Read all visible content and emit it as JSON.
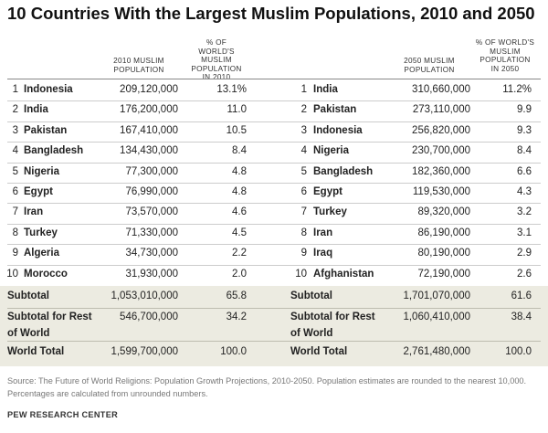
{
  "chart_data": {
    "type": "table",
    "title": "10 Countries With the Largest Muslim Populations, 2010 and 2050",
    "columns_2010": [
      "2010 MUSLIM POPULATION",
      "% OF WORLD'S MUSLIM POPULATION IN 2010"
    ],
    "columns_2050": [
      "2050 MUSLIM POPULATION",
      "% OF WORLD'S MUSLIM POPULATION IN 2050"
    ],
    "rows_2010": [
      {
        "rank": "1",
        "country": "Indonesia",
        "population": "209,120,000",
        "percent": "13.1%"
      },
      {
        "rank": "2",
        "country": "India",
        "population": "176,200,000",
        "percent": "11.0"
      },
      {
        "rank": "3",
        "country": "Pakistan",
        "population": "167,410,000",
        "percent": "10.5"
      },
      {
        "rank": "4",
        "country": "Bangladesh",
        "population": "134,430,000",
        "percent": "8.4"
      },
      {
        "rank": "5",
        "country": "Nigeria",
        "population": "77,300,000",
        "percent": "4.8"
      },
      {
        "rank": "6",
        "country": "Egypt",
        "population": "76,990,000",
        "percent": "4.8"
      },
      {
        "rank": "7",
        "country": "Iran",
        "population": "73,570,000",
        "percent": "4.6"
      },
      {
        "rank": "8",
        "country": "Turkey",
        "population": "71,330,000",
        "percent": "4.5"
      },
      {
        "rank": "9",
        "country": "Algeria",
        "population": "34,730,000",
        "percent": "2.2"
      },
      {
        "rank": "10",
        "country": "Morocco",
        "population": "31,930,000",
        "percent": "2.0"
      }
    ],
    "rows_2050": [
      {
        "rank": "1",
        "country": "India",
        "population": "310,660,000",
        "percent": "11.2%"
      },
      {
        "rank": "2",
        "country": "Pakistan",
        "population": "273,110,000",
        "percent": "9.9"
      },
      {
        "rank": "3",
        "country": "Indonesia",
        "population": "256,820,000",
        "percent": "9.3"
      },
      {
        "rank": "4",
        "country": "Nigeria",
        "population": "230,700,000",
        "percent": "8.4"
      },
      {
        "rank": "5",
        "country": "Bangladesh",
        "population": "182,360,000",
        "percent": "6.6"
      },
      {
        "rank": "6",
        "country": "Egypt",
        "population": "119,530,000",
        "percent": "4.3"
      },
      {
        "rank": "7",
        "country": "Turkey",
        "population": "89,320,000",
        "percent": "3.2"
      },
      {
        "rank": "8",
        "country": "Iran",
        "population": "86,190,000",
        "percent": "3.1"
      },
      {
        "rank": "9",
        "country": "Iraq",
        "population": "80,190,000",
        "percent": "2.9"
      },
      {
        "rank": "10",
        "country": "Afghanistan",
        "population": "72,190,000",
        "percent": "2.6"
      }
    ],
    "subtotals_2010": [
      {
        "label": "Subtotal",
        "population": "1,053,010,000",
        "percent": "65.8"
      },
      {
        "label": "Subtotal for Rest of World",
        "population": "546,700,000",
        "percent": "34.2"
      },
      {
        "label": "World Total",
        "population": "1,599,700,000",
        "percent": "100.0"
      }
    ],
    "subtotals_2050": [
      {
        "label": "Subtotal",
        "population": "1,701,070,000",
        "percent": "61.6"
      },
      {
        "label": "Subtotal for Rest of World",
        "population": "1,060,410,000",
        "percent": "38.4"
      },
      {
        "label": "World Total",
        "population": "2,761,480,000",
        "percent": "100.0"
      }
    ]
  },
  "footer": {
    "source": "Source: The Future of World Religions: Population Growth Projections, 2010-2050. Population estimates are rounded to the nearest 10,000. Percentages are calculated from unrounded numbers.",
    "credit": "PEW RESEARCH CENTER"
  },
  "colors": {
    "subtotal_band": "#ecebe1",
    "rule": "#cccccc"
  }
}
